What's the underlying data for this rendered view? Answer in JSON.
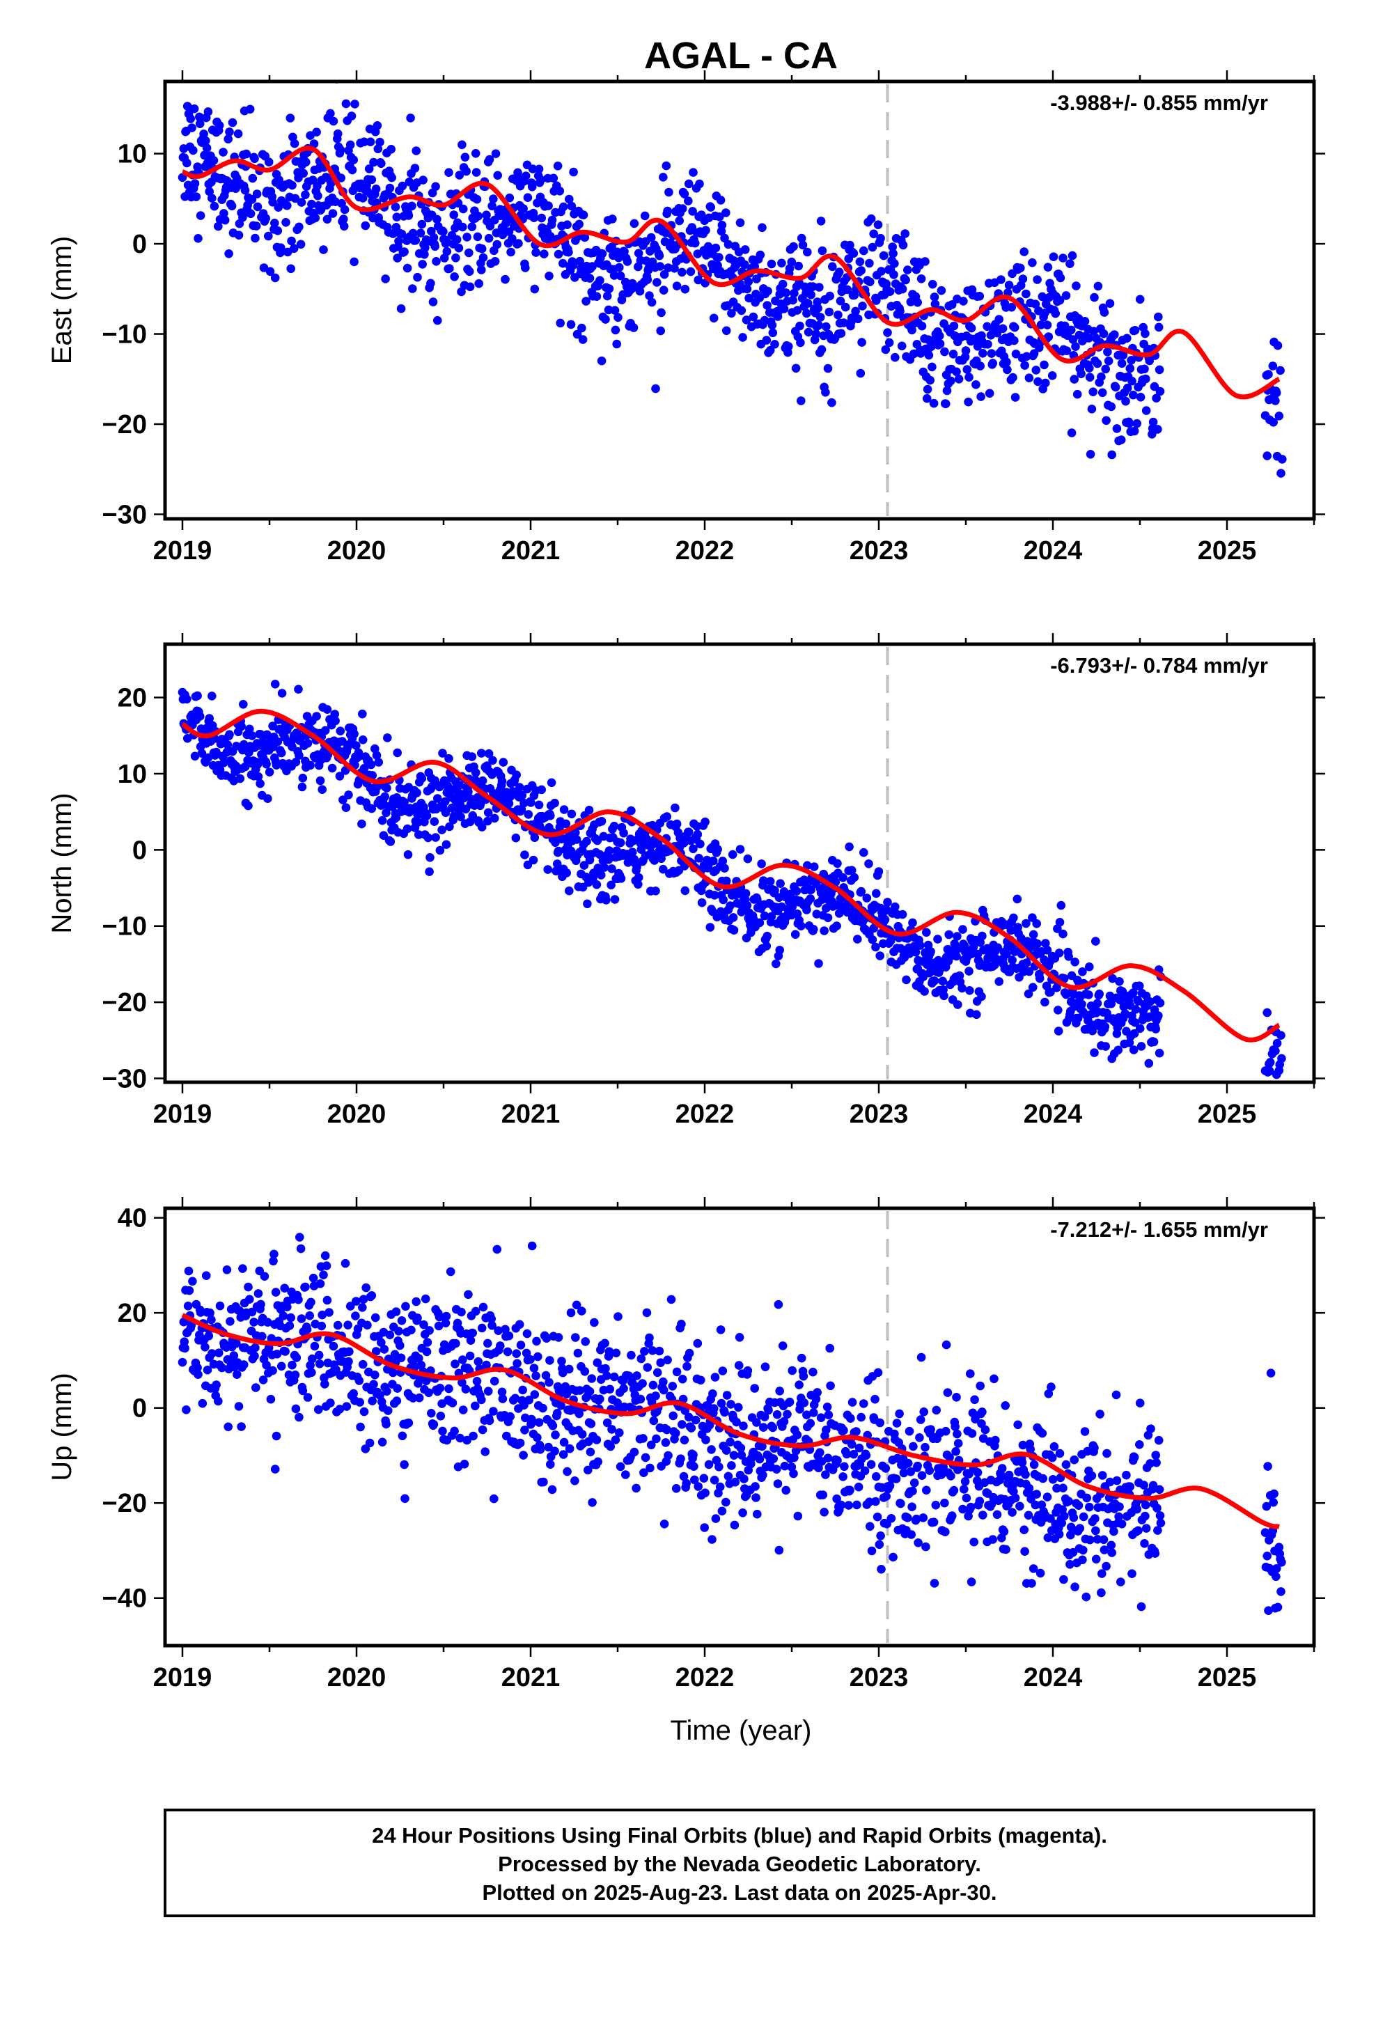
{
  "title": "AGAL - CA",
  "xlabel": "Time (year)",
  "footer": {
    "line1": "24 Hour Positions Using Final Orbits (blue) and Rapid Orbits (magenta).",
    "line2": "Processed by the Nevada Geodetic Laboratory.",
    "line3": "Plotted on 2025-Aug-23. Last data on 2025-Apr-30."
  },
  "colors": {
    "final_orbits": "#0000ff",
    "rapid_orbits": "#ff00ff",
    "model_fit": "#ff0000",
    "equipment_change": "#c0c0c0"
  },
  "chart_data": [
    {
      "type": "scatter",
      "component": "east",
      "ylabel": "East (mm)",
      "rate_text": "-3.988+/- 0.855 mm/yr",
      "xlim": [
        2018.9,
        2025.5
      ],
      "ylim": [
        -30.5,
        18
      ],
      "xticks": [
        2019,
        2020,
        2021,
        2022,
        2023,
        2024,
        2025
      ],
      "yticks": [
        -30,
        -20,
        -10,
        0,
        10
      ],
      "equipment_change_x": 2023.05,
      "trend": {
        "x0": 2019.0,
        "y0": 9.0,
        "rate": -3.988,
        "season_amp": 2.2,
        "season_phase": 0.3,
        "scatter": 3.6
      },
      "fit": [
        [
          2019.0,
          8.0
        ],
        [
          2019.1,
          7.5
        ],
        [
          2019.3,
          9.2
        ],
        [
          2019.5,
          8.2
        ],
        [
          2019.75,
          10.5
        ],
        [
          2020.0,
          4.0
        ],
        [
          2020.3,
          5.2
        ],
        [
          2020.5,
          4.3
        ],
        [
          2020.75,
          6.6
        ],
        [
          2021.05,
          0.0
        ],
        [
          2021.3,
          1.3
        ],
        [
          2021.55,
          0.2
        ],
        [
          2021.75,
          2.5
        ],
        [
          2022.05,
          -4.3
        ],
        [
          2022.3,
          -3.0
        ],
        [
          2022.55,
          -3.8
        ],
        [
          2022.75,
          -1.5
        ],
        [
          2023.05,
          -8.7
        ],
        [
          2023.3,
          -7.3
        ],
        [
          2023.5,
          -8.5
        ],
        [
          2023.75,
          -6.0
        ],
        [
          2024.05,
          -12.8
        ],
        [
          2024.3,
          -11.3
        ],
        [
          2024.55,
          -12.3
        ],
        [
          2024.75,
          -9.8
        ],
        [
          2025.05,
          -16.8
        ],
        [
          2025.3,
          -15.0
        ]
      ],
      "segments": [
        [
          2019.0,
          2024.62
        ],
        [
          2025.22,
          2025.32
        ]
      ]
    },
    {
      "type": "scatter",
      "component": "north",
      "ylabel": "North (mm)",
      "rate_text": "-6.793+/- 0.784 mm/yr",
      "xlim": [
        2018.9,
        2025.5
      ],
      "ylim": [
        -30.5,
        27
      ],
      "xticks": [
        2019,
        2020,
        2021,
        2022,
        2023,
        2024,
        2025
      ],
      "yticks": [
        -30,
        -20,
        -10,
        0,
        10,
        20
      ],
      "equipment_change_x": 2023.05,
      "trend": {
        "x0": 2019.0,
        "y0": 17.0,
        "rate": -6.793,
        "season_amp": 2.8,
        "season_phase": 0.45,
        "scatter": 2.6
      },
      "fit": [
        [
          2019.0,
          16.5
        ],
        [
          2019.15,
          15.0
        ],
        [
          2019.45,
          18.2
        ],
        [
          2019.75,
          15.0
        ],
        [
          2020.1,
          9.0
        ],
        [
          2020.45,
          11.5
        ],
        [
          2020.75,
          7.0
        ],
        [
          2021.1,
          2.0
        ],
        [
          2021.45,
          5.0
        ],
        [
          2021.75,
          1.5
        ],
        [
          2022.1,
          -4.8
        ],
        [
          2022.45,
          -2.0
        ],
        [
          2022.75,
          -5.0
        ],
        [
          2023.1,
          -11.0
        ],
        [
          2023.45,
          -8.2
        ],
        [
          2023.75,
          -11.5
        ],
        [
          2024.1,
          -18.0
        ],
        [
          2024.45,
          -15.2
        ],
        [
          2024.75,
          -18.5
        ],
        [
          2025.1,
          -24.8
        ],
        [
          2025.3,
          -23.0
        ]
      ],
      "segments": [
        [
          2019.0,
          2024.62
        ],
        [
          2025.22,
          2025.32
        ]
      ]
    },
    {
      "type": "scatter",
      "component": "up",
      "ylabel": "Up (mm)",
      "rate_text": "-7.212+/- 1.655 mm/yr",
      "xlim": [
        2018.9,
        2025.5
      ],
      "ylim": [
        -50,
        42
      ],
      "xticks": [
        2019,
        2020,
        2021,
        2022,
        2023,
        2024,
        2025
      ],
      "yticks": [
        -40,
        -20,
        0,
        20,
        40
      ],
      "equipment_change_x": 2023.05,
      "trend": {
        "x0": 2019.0,
        "y0": 18.0,
        "rate": -7.212,
        "season_amp": 2.5,
        "season_phase": 0.6,
        "scatter": 8.5
      },
      "fit": [
        [
          2019.0,
          19.5
        ],
        [
          2019.25,
          15.5
        ],
        [
          2019.55,
          13.5
        ],
        [
          2019.85,
          15.5
        ],
        [
          2020.2,
          9.0
        ],
        [
          2020.55,
          6.3
        ],
        [
          2020.85,
          8.0
        ],
        [
          2021.2,
          1.5
        ],
        [
          2021.55,
          -1.2
        ],
        [
          2021.85,
          1.0
        ],
        [
          2022.2,
          -5.5
        ],
        [
          2022.55,
          -8.0
        ],
        [
          2022.85,
          -6.2
        ],
        [
          2023.2,
          -10.0
        ],
        [
          2023.55,
          -12.0
        ],
        [
          2023.85,
          -9.8
        ],
        [
          2024.2,
          -16.5
        ],
        [
          2024.55,
          -19.0
        ],
        [
          2024.85,
          -17.0
        ],
        [
          2025.2,
          -24.0
        ],
        [
          2025.3,
          -25.0
        ]
      ],
      "segments": [
        [
          2019.0,
          2024.62
        ],
        [
          2025.22,
          2025.32
        ]
      ]
    }
  ]
}
